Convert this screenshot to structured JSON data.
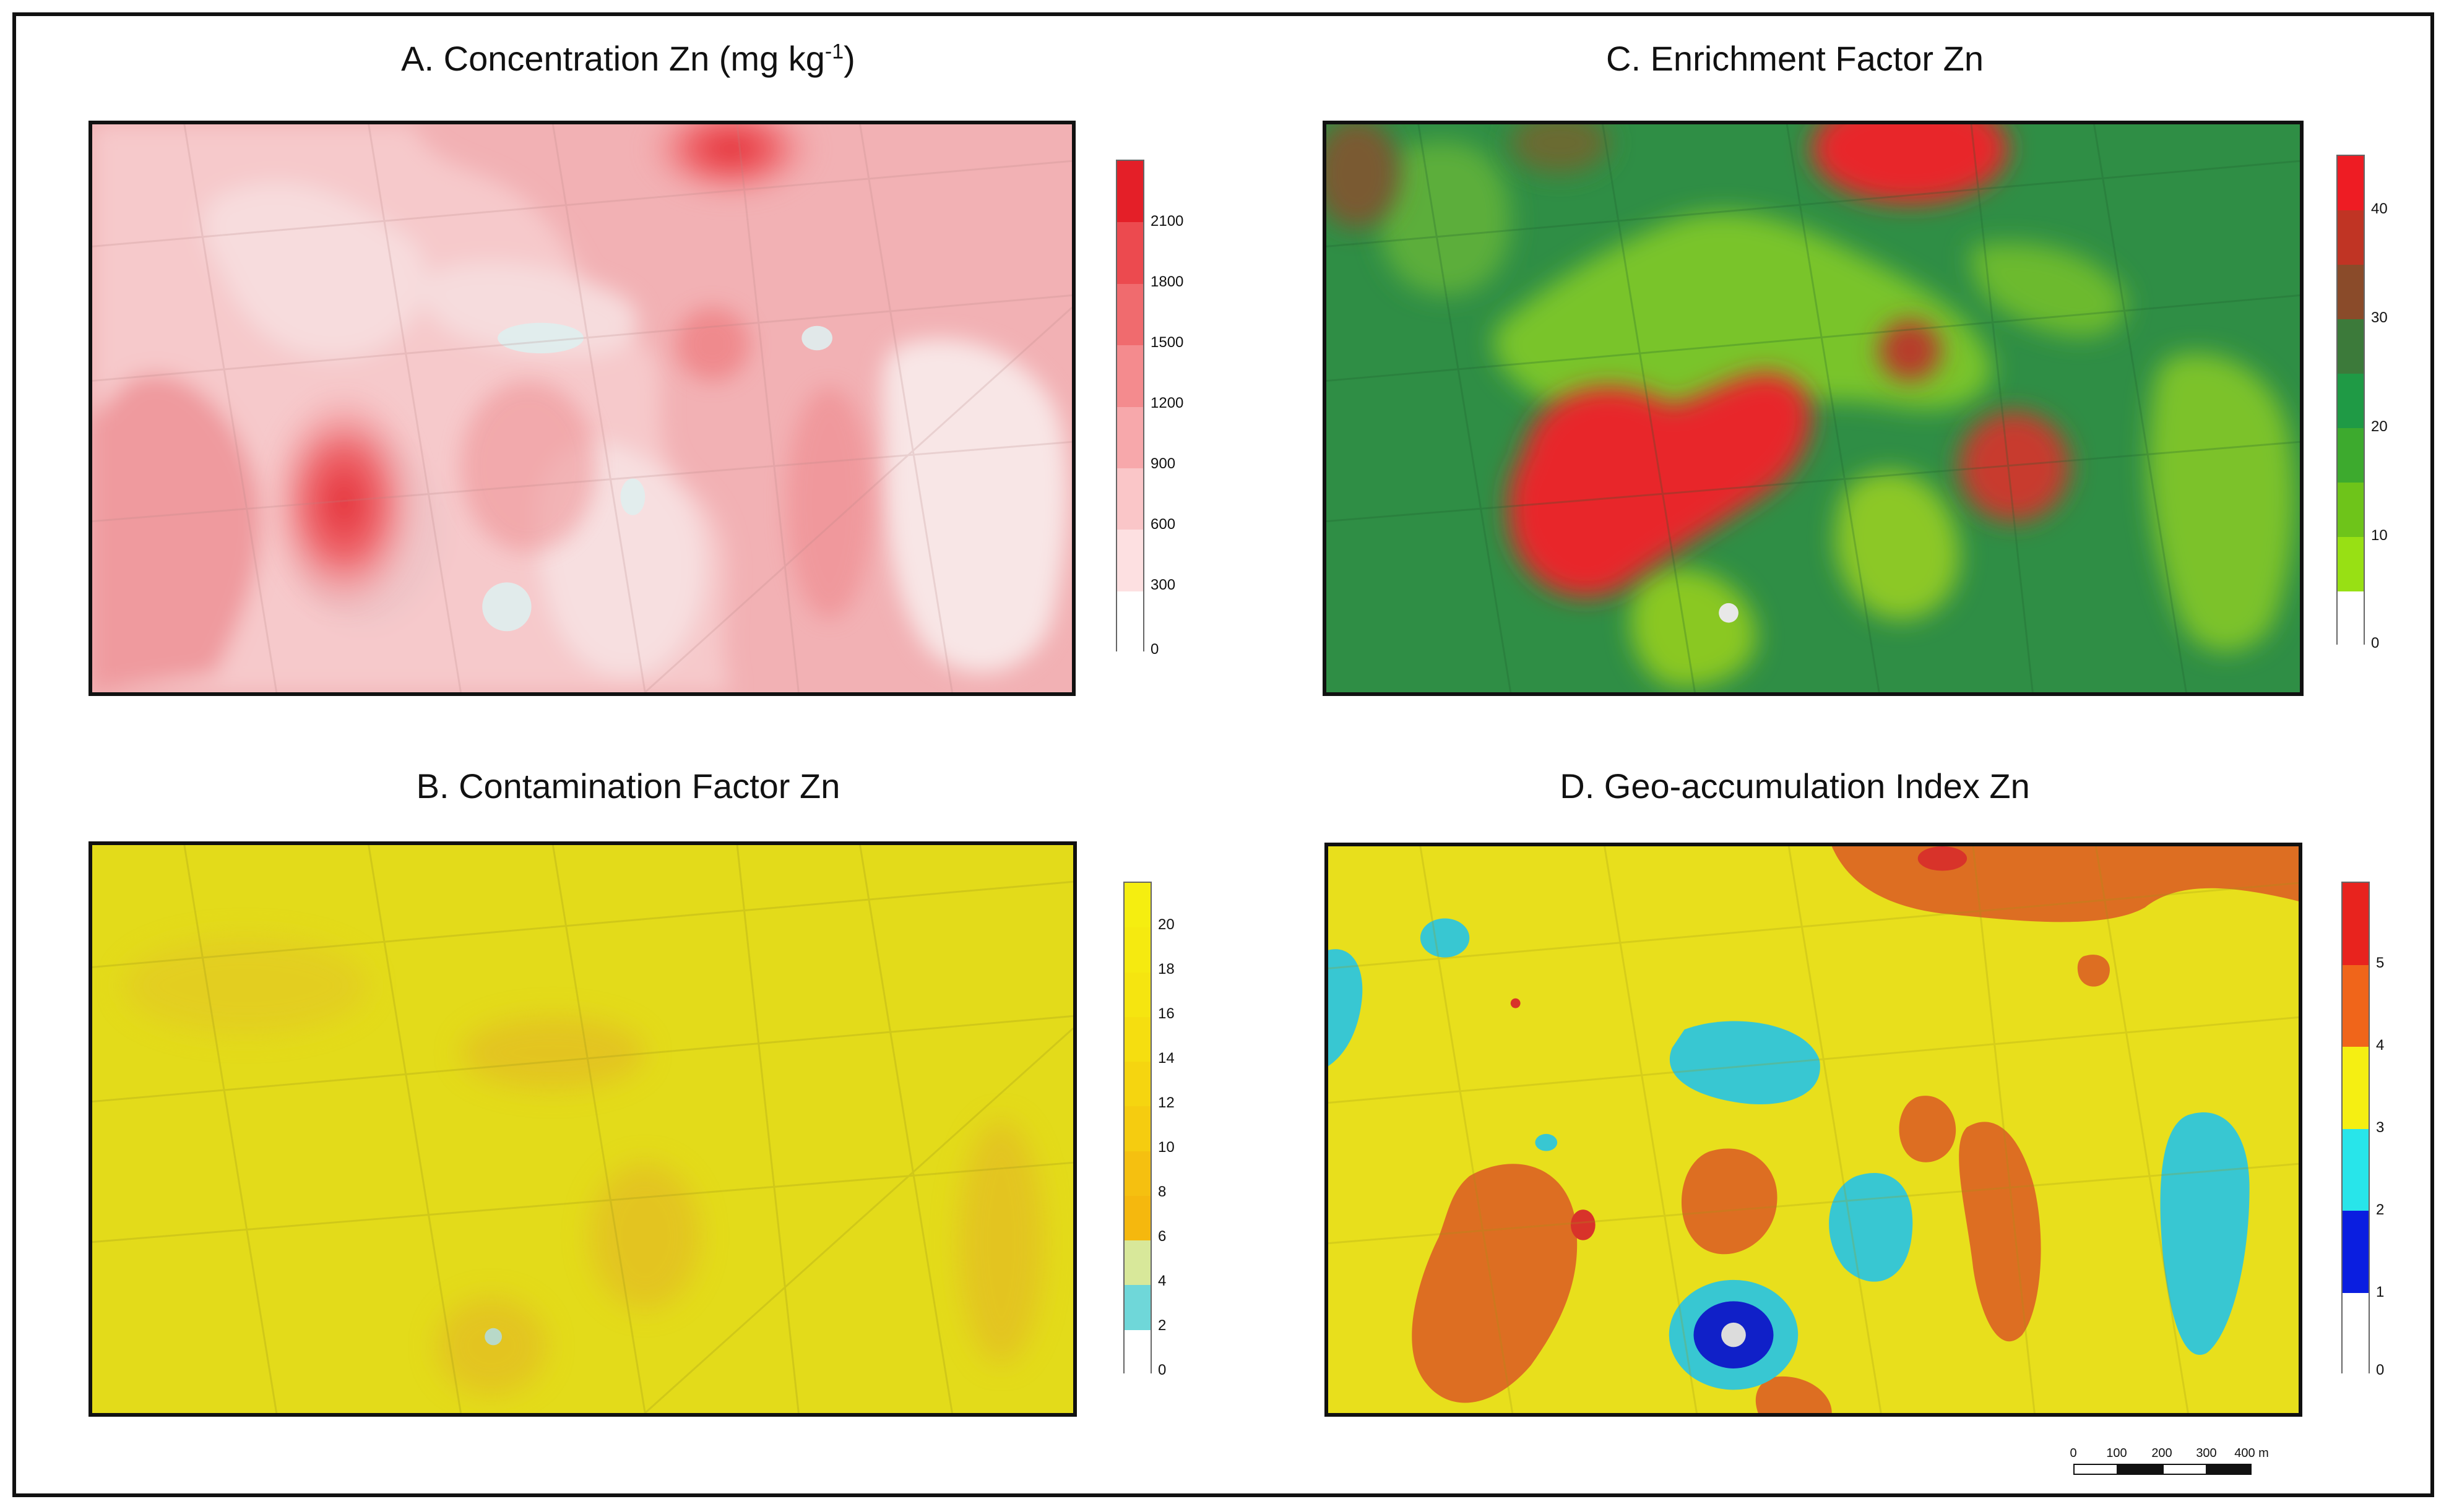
{
  "panels": {
    "A": {
      "title": "A. Concentration Zn (mg kg",
      "title_sup": "-1",
      "title_end": ")",
      "legend_labels": [
        "2100",
        "1800",
        "1500",
        "1200",
        "900",
        "600",
        "300",
        "0"
      ],
      "legend_colors": [
        "#e41f28",
        "#ec4a4f",
        "#f06b6e",
        "#f48b8e",
        "#f7a8ab",
        "#fac6c8",
        "#fde0e1",
        "#ffffff"
      ]
    },
    "B": {
      "title": "B. Contamination Factor Zn",
      "legend_labels": [
        "20",
        "18",
        "16",
        "14",
        "12",
        "10",
        "8",
        "6",
        "4",
        "2",
        "0"
      ],
      "legend_colors": [
        "#f5ee10",
        "#f5ea10",
        "#f5e510",
        "#f5de10",
        "#f5d510",
        "#f5cc10",
        "#f5c010",
        "#f5b80e",
        "#d8e89a",
        "#6fd7d9",
        "#ffffff"
      ]
    },
    "C": {
      "title": "C. Enrichment Factor Zn",
      "legend_labels": [
        "40",
        "30",
        "20",
        "10",
        "0"
      ],
      "legend_colors": [
        "#ee1c23",
        "#c03424",
        "#8a4b2a",
        "#3c7a3a",
        "#1f9a45",
        "#3daa2e",
        "#6ec41a",
        "#98e014",
        "#ffffff"
      ]
    },
    "D": {
      "title": "D. Geo-accumulation Index Zn",
      "legend_labels": [
        "5",
        "4",
        "3",
        "2",
        "1",
        "0"
      ],
      "legend_colors": [
        "#e8231e",
        "#f0651a",
        "#f5ef12",
        "#28e5ea",
        "#0a1ee0",
        "#ffffff"
      ]
    }
  },
  "scale_bar": {
    "labels": [
      "0",
      "100",
      "200",
      "300",
      "400 m"
    ]
  }
}
